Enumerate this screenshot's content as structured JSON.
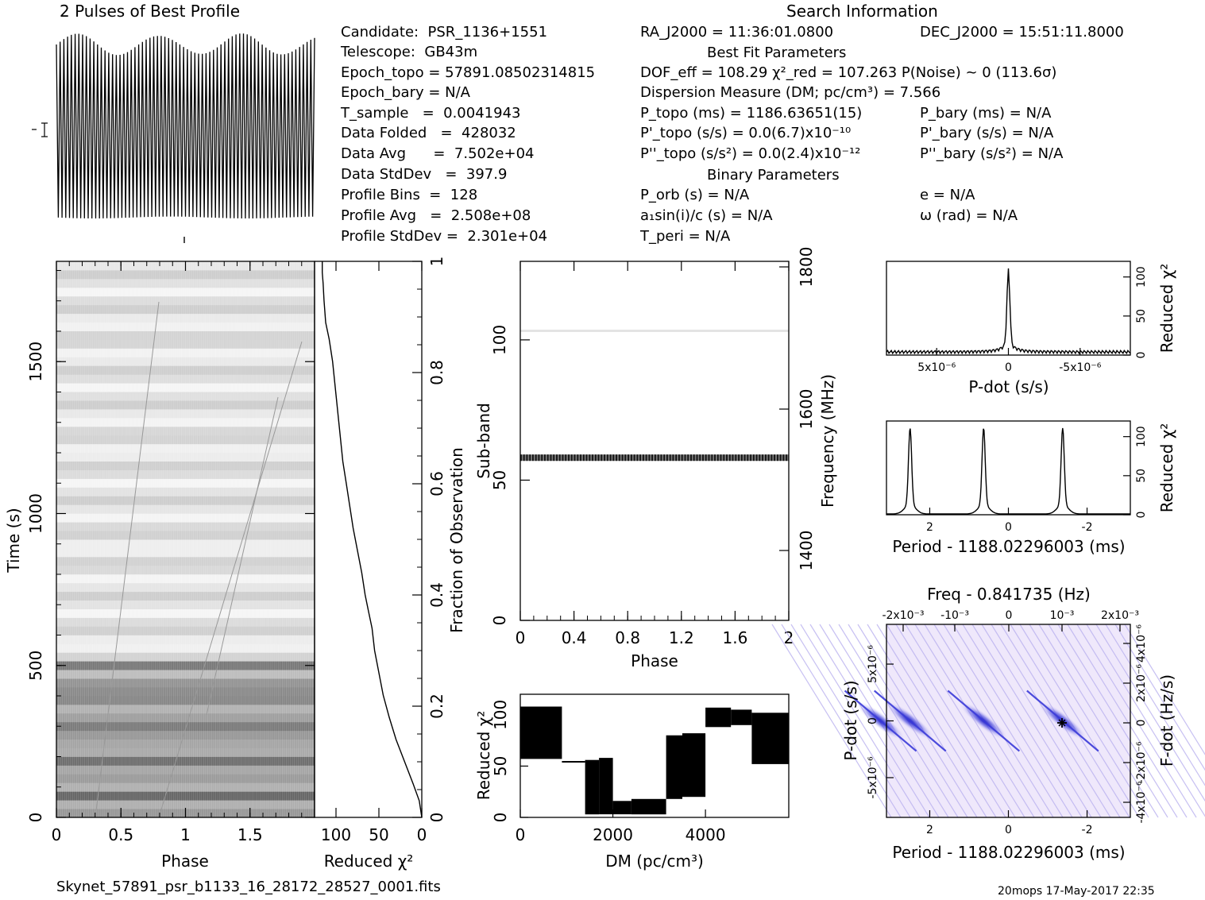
{
  "header": {
    "profile_title": "2 Pulses of Best Profile",
    "search_title": "Search Information",
    "best_fit_title": "Best Fit Parameters",
    "binary_title": "Binary Parameters"
  },
  "info_left": [
    "Candidate:  PSR_1136+1551",
    "Telescope:  GB43m",
    "Epoch_topo = 57891.08502314815",
    "Epoch_bary = N/A",
    "T_sample   =  0.0041943",
    "Data Folded   =  428032",
    "Data Avg      =  7.502e+04",
    "Data StdDev   =  397.9",
    "Profile Bins  =  128",
    "Profile Avg   =  2.508e+08",
    "Profile StdDev =  2.301e+04"
  ],
  "info_mid": {
    "ra": "RA_J2000 = 11:36:01.0800",
    "dof": "DOF_eff = 108.29  χ²_red = 107.263  P(Noise) ~ 0   (113.6σ)",
    "dm": "Dispersion Measure (DM; pc/cm³) = 7.566",
    "p_topo": "P_topo (ms) =  1186.63651(15)",
    "pd_topo": "P'_topo (s/s) = 0.0(6.7)x10⁻¹⁰",
    "pdd_topo": "P''_topo (s/s²) = 0.0(2.4)x10⁻¹²",
    "p_orb": "P_orb (s) = N/A",
    "a1sini": "a₁sin(i)/c (s) = N/A",
    "t_peri": "T_peri = N/A"
  },
  "info_right": {
    "dec": "DEC_J2000 = 15:51:11.8000",
    "p_bary": "P_bary (ms) = N/A",
    "pd_bary": "P'_bary (s/s) = N/A",
    "pdd_bary": "P''_bary (s/s²) = N/A",
    "e": "e = N/A",
    "omega": "ω (rad) = N/A"
  },
  "footer": {
    "filename": "Skynet_57891_psr_b1133_16_28172_28527_0001.fits",
    "stamp": "20mops 17-May-2017 22:35"
  },
  "colors": {
    "ink": "#000000",
    "pdot_map": "#2a2ad8"
  },
  "chart_data": [
    {
      "id": "time-phase",
      "type": "heatmap",
      "xlabel": "Phase",
      "ylabel": "Time (s)",
      "xlim": [
        0,
        2
      ],
      "ylim": [
        0,
        1830
      ],
      "xticks": [
        "0",
        "0.5",
        "1",
        "1.5"
      ],
      "yticks": [
        "0",
        "500",
        "1000",
        "1500"
      ]
    },
    {
      "id": "reduced-chi2-vs-fraction",
      "type": "line",
      "xlabel": "Reduced χ²",
      "ylabel": "Fraction of Observation",
      "xlim": [
        125,
        0
      ],
      "ylim": [
        0,
        1
      ],
      "xticks": [
        "100",
        "50",
        "0"
      ],
      "yticks": [
        "0",
        "0.2",
        "0.4",
        "0.6",
        "0.8",
        "1"
      ],
      "x": [
        0,
        3,
        10,
        20,
        30,
        38,
        45,
        50,
        55,
        58,
        62,
        66,
        70,
        75,
        80,
        84,
        88,
        92,
        96,
        100,
        104,
        108,
        112,
        114,
        115,
        116,
        116
      ],
      "y": [
        0,
        0.03,
        0.06,
        0.1,
        0.14,
        0.18,
        0.22,
        0.26,
        0.3,
        0.34,
        0.37,
        0.4,
        0.44,
        0.48,
        0.52,
        0.56,
        0.6,
        0.64,
        0.7,
        0.76,
        0.82,
        0.86,
        0.89,
        0.93,
        0.96,
        0.98,
        1.0
      ]
    },
    {
      "id": "subband-phase",
      "type": "heatmap",
      "xlabel": "Phase",
      "ylabel": "Sub-band",
      "ylabel2": "Frequency (MHz)",
      "xlim": [
        0,
        2
      ],
      "ylim": [
        0,
        128
      ],
      "xticks": [
        "0",
        "0.4",
        "0.8",
        "1.2",
        "1.6",
        "2"
      ],
      "yticks": [
        "0",
        "50",
        "100"
      ],
      "y2ticks": [
        "1400",
        "1600",
        "1800"
      ],
      "bright_band": 58
    },
    {
      "id": "dm-curve",
      "type": "bar",
      "xlabel": "DM (pc/cm³)",
      "ylabel": "Reduced χ²",
      "xlim": [
        0,
        5800
      ],
      "ylim": [
        0,
        120
      ],
      "xticks": [
        "0",
        "2000",
        "4000"
      ],
      "yticks": [
        "0",
        "50",
        "100"
      ],
      "segments": [
        {
          "x0": 0,
          "x1": 900,
          "lo": 57,
          "hi": 108
        },
        {
          "x0": 900,
          "x1": 1400,
          "lo": 55,
          "hi": 55
        },
        {
          "x0": 1400,
          "x1": 1700,
          "lo": 3,
          "hi": 56
        },
        {
          "x0": 1700,
          "x1": 2000,
          "lo": 3,
          "hi": 58
        },
        {
          "x0": 2000,
          "x1": 2400,
          "lo": 3,
          "hi": 16
        },
        {
          "x0": 2400,
          "x1": 3150,
          "lo": 3,
          "hi": 18
        },
        {
          "x0": 3150,
          "x1": 3500,
          "lo": 18,
          "hi": 80
        },
        {
          "x0": 3500,
          "x1": 4000,
          "lo": 20,
          "hi": 82
        },
        {
          "x0": 4000,
          "x1": 4550,
          "lo": 88,
          "hi": 107
        },
        {
          "x0": 4550,
          "x1": 5000,
          "lo": 90,
          "hi": 105
        },
        {
          "x0": 5000,
          "x1": 5800,
          "lo": 52,
          "hi": 102
        }
      ]
    },
    {
      "id": "pdot-chi2",
      "type": "line",
      "xlabel": "P-dot (s/s)",
      "ylabel": "Reduced χ²",
      "xlim": [
        8.5e-06,
        -8.5e-06
      ],
      "ylim": [
        0,
        120
      ],
      "xticks": [
        "5x10⁻⁶",
        "0",
        "-5x10⁻⁶"
      ],
      "yticks": [
        "0",
        "50",
        "100"
      ],
      "x": [
        8.5e-06,
        6e-06,
        3e-06,
        1e-06,
        5e-07,
        2e-07,
        0,
        -2e-07,
        -5e-07,
        -1e-06,
        -3e-06,
        -6e-06,
        -8.5e-06
      ],
      "y": [
        4,
        5,
        6,
        8,
        12,
        30,
        110,
        30,
        12,
        8,
        6,
        5,
        4
      ]
    },
    {
      "id": "period-chi2",
      "type": "line",
      "xlabel": "Period - 1188.02296003 (ms)",
      "ylabel": "Reduced χ²",
      "xlim": [
        3.1,
        -3.1
      ],
      "ylim": [
        0,
        120
      ],
      "xticks": [
        "2",
        "0",
        "-2"
      ],
      "yticks": [
        "0",
        "50",
        "100"
      ],
      "peaks": [
        2.5,
        0.63,
        -1.38
      ],
      "peak_height": 110
    },
    {
      "id": "ppdot-map",
      "type": "heatmap",
      "title": "Freq - 0.841735 (Hz)",
      "xlabel": "Period - 1188.02296003 (ms)",
      "ylabel": "P-dot (s/s)",
      "ylabel2": "F-dot (Hz/s)",
      "xlim": [
        3.1,
        -3.1
      ],
      "ylim": [
        8.5e-06,
        -8.5e-06
      ],
      "xticks": [
        "2",
        "0",
        "-2"
      ],
      "top_ticks": [
        "-2x10⁻³",
        "-10⁻³",
        "0",
        "10⁻³",
        "2x10⁻³"
      ],
      "yticks": [
        "5x10⁻⁶",
        "0",
        "-5x10⁻⁶"
      ],
      "y2ticks": [
        "-4x10⁻⁶",
        "-2x10⁻⁶",
        "0",
        "2x10⁻⁶",
        "4x10⁻⁶"
      ],
      "best": [
        -1.38,
        0
      ]
    }
  ]
}
